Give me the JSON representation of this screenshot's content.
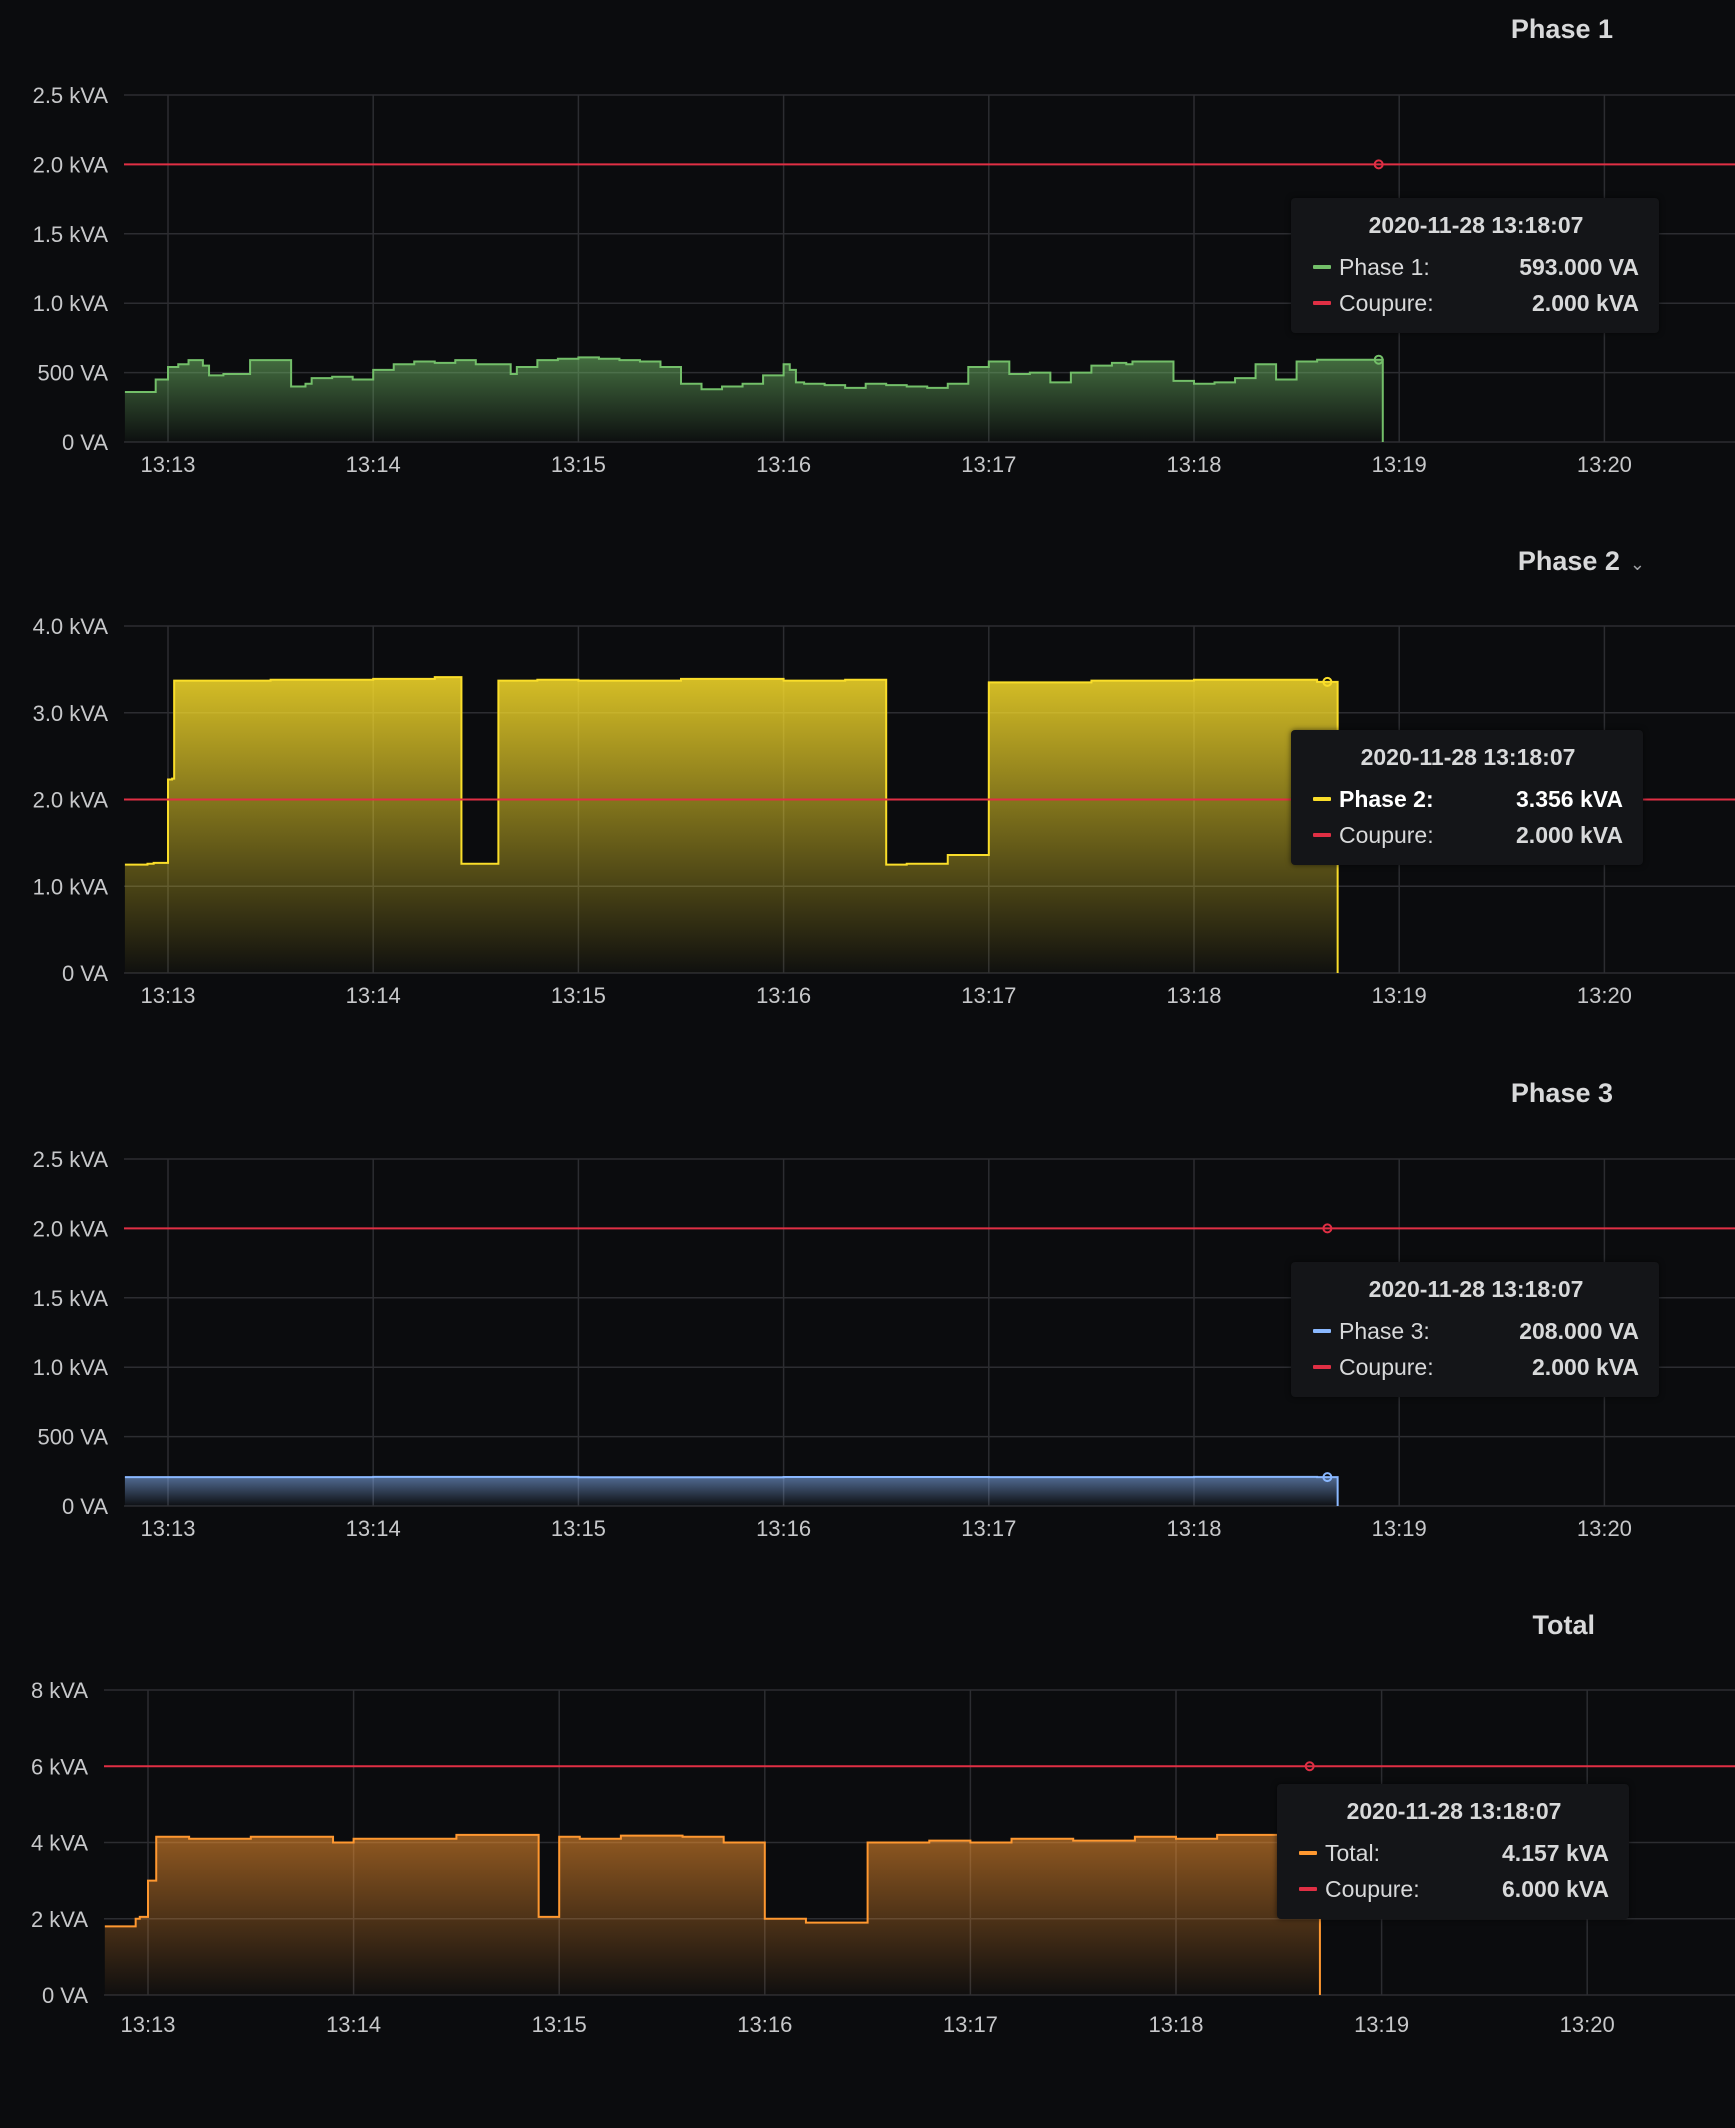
{
  "chart_data": [
    {
      "type": "area",
      "title": "Phase 1",
      "title_chevron": "",
      "x_ticks": [
        "13:13",
        "13:14",
        "13:15",
        "13:16",
        "13:17",
        "13:18",
        "13:19",
        "13:20"
      ],
      "y_ticks": [
        {
          "value": 0,
          "label": "0 VA"
        },
        {
          "value": 500,
          "label": "500 VA"
        },
        {
          "value": 1000,
          "label": "1.0 kVA"
        },
        {
          "value": 1500,
          "label": "1.5 kVA"
        },
        {
          "value": 2000,
          "label": "2.0 kVA"
        },
        {
          "value": 2500,
          "label": "2.5 kVA"
        }
      ],
      "xlim": [
        -0.21,
        7.8
      ],
      "ylim": [
        0,
        2500
      ],
      "grid": true,
      "threshold": {
        "name": "Coupure",
        "value": 2000,
        "color": "#e02f44"
      },
      "series": [
        {
          "name": "Phase 1",
          "color": "#73bf69",
          "step": true,
          "x": [
            -0.21,
            -0.07,
            -0.06,
            0.0,
            0.05,
            0.1,
            0.17,
            0.2,
            0.27,
            0.3,
            0.4,
            0.5,
            0.6,
            0.67,
            0.7,
            0.8,
            0.9,
            1.0,
            1.1,
            1.2,
            1.3,
            1.4,
            1.5,
            1.6,
            1.67,
            1.7,
            1.8,
            1.9,
            2.0,
            2.1,
            2.2,
            2.3,
            2.4,
            2.5,
            2.6,
            2.7,
            2.8,
            2.9,
            3.0,
            3.03,
            3.06,
            3.1,
            3.2,
            3.3,
            3.4,
            3.5,
            3.6,
            3.7,
            3.8,
            3.9,
            4.0,
            4.1,
            4.2,
            4.3,
            4.4,
            4.5,
            4.6,
            4.67,
            4.7,
            4.8,
            4.9,
            5.0,
            5.1,
            5.2,
            5.3,
            5.4,
            5.5,
            5.6,
            5.65,
            5.9,
            5.92
          ],
          "values": [
            360,
            360,
            450,
            540,
            560,
            590,
            550,
            480,
            490,
            490,
            590,
            590,
            400,
            420,
            460,
            470,
            450,
            520,
            560,
            580,
            570,
            590,
            560,
            560,
            490,
            540,
            590,
            600,
            610,
            600,
            590,
            580,
            540,
            420,
            380,
            400,
            420,
            480,
            560,
            520,
            430,
            420,
            410,
            390,
            420,
            410,
            400,
            390,
            420,
            540,
            580,
            490,
            500,
            430,
            500,
            550,
            570,
            560,
            580,
            580,
            440,
            420,
            430,
            460,
            560,
            450,
            580,
            593,
            593,
            593,
            0
          ]
        }
      ],
      "tooltip": {
        "time": "2020-11-28 13:18:07",
        "rows": [
          {
            "label": "Phase 1:",
            "value": "593.000 VA",
            "color": "#73bf69",
            "highlight": false
          },
          {
            "label": "Coupure:",
            "value": "2.000 kVA",
            "color": "#e02f44",
            "highlight": false
          }
        ]
      }
    },
    {
      "type": "area",
      "title": "Phase 2",
      "title_chevron": "⌄",
      "x_ticks": [
        "13:13",
        "13:14",
        "13:15",
        "13:16",
        "13:17",
        "13:18",
        "13:19",
        "13:20"
      ],
      "y_ticks": [
        {
          "value": 0,
          "label": "0 VA"
        },
        {
          "value": 1000,
          "label": "1.0 kVA"
        },
        {
          "value": 2000,
          "label": "2.0 kVA"
        },
        {
          "value": 3000,
          "label": "3.0 kVA"
        },
        {
          "value": 4000,
          "label": "4.0 kVA"
        }
      ],
      "xlim": [
        -0.21,
        7.8
      ],
      "ylim": [
        0,
        4000
      ],
      "grid": true,
      "threshold": {
        "name": "Coupure",
        "value": 2000,
        "color": "#e02f44"
      },
      "series": [
        {
          "name": "Phase 2",
          "color": "#fade2a",
          "step": true,
          "x": [
            -0.21,
            -0.1,
            -0.07,
            0.0,
            0.02,
            0.03,
            0.1,
            0.5,
            1.0,
            1.3,
            1.43,
            1.61,
            1.63,
            1.8,
            2.0,
            2.5,
            3.0,
            3.3,
            3.5,
            3.6,
            3.8,
            4.0,
            4.5,
            5.0,
            5.6,
            5.65,
            5.7
          ],
          "values": [
            1250,
            1260,
            1270,
            2230,
            2240,
            3370,
            3370,
            3380,
            3390,
            3410,
            1260,
            3370,
            3370,
            3380,
            3370,
            3390,
            3370,
            3380,
            1250,
            1260,
            1360,
            3350,
            3370,
            3380,
            3356,
            3356,
            0
          ]
        }
      ],
      "tooltip": {
        "time": "2020-11-28 13:18:07",
        "rows": [
          {
            "label": "Phase 2:",
            "value": "3.356 kVA",
            "color": "#fade2a",
            "highlight": true
          },
          {
            "label": "Coupure:",
            "value": "2.000 kVA",
            "color": "#e02f44",
            "highlight": false
          }
        ]
      }
    },
    {
      "type": "area",
      "title": "Phase 3",
      "title_chevron": "",
      "x_ticks": [
        "13:13",
        "13:14",
        "13:15",
        "13:16",
        "13:17",
        "13:18",
        "13:19",
        "13:20"
      ],
      "y_ticks": [
        {
          "value": 0,
          "label": "0 VA"
        },
        {
          "value": 500,
          "label": "500 VA"
        },
        {
          "value": 1000,
          "label": "1.0 kVA"
        },
        {
          "value": 1500,
          "label": "1.5 kVA"
        },
        {
          "value": 2000,
          "label": "2.0 kVA"
        },
        {
          "value": 2500,
          "label": "2.5 kVA"
        }
      ],
      "xlim": [
        -0.21,
        7.8
      ],
      "ylim": [
        0,
        2500
      ],
      "grid": true,
      "threshold": {
        "name": "Coupure",
        "value": 2000,
        "color": "#e02f44"
      },
      "series": [
        {
          "name": "Phase 3",
          "color": "#8ab8ff",
          "step": true,
          "x": [
            -0.21,
            1.0,
            2.0,
            3.0,
            4.0,
            5.0,
            5.6,
            5.65,
            5.7
          ],
          "values": [
            208,
            210,
            207,
            209,
            208,
            210,
            208,
            208,
            0
          ]
        }
      ],
      "tooltip": {
        "time": "2020-11-28 13:18:07",
        "rows": [
          {
            "label": "Phase 3:",
            "value": "208.000 VA",
            "color": "#8ab8ff",
            "highlight": false
          },
          {
            "label": "Coupure:",
            "value": "2.000 kVA",
            "color": "#e02f44",
            "highlight": false
          }
        ]
      }
    },
    {
      "type": "area",
      "title": "Total",
      "title_chevron": "",
      "x_ticks": [
        "13:13",
        "13:14",
        "13:15",
        "13:16",
        "13:17",
        "13:18",
        "13:19",
        "13:20"
      ],
      "y_ticks": [
        {
          "value": 0,
          "label": "0 VA"
        },
        {
          "value": 2000,
          "label": "2 kVA"
        },
        {
          "value": 4000,
          "label": "4 kVA"
        },
        {
          "value": 6000,
          "label": "6 kVA"
        },
        {
          "value": 8000,
          "label": "8 kVA"
        }
      ],
      "xlim": [
        -0.21,
        7.8
      ],
      "ylim": [
        0,
        8000
      ],
      "grid": true,
      "threshold": {
        "name": "Coupure",
        "value": 6000,
        "color": "#e02f44"
      },
      "series": [
        {
          "name": "Total",
          "color": "#ff9830",
          "step": true,
          "x": [
            -0.21,
            -0.06,
            -0.04,
            0.0,
            0.04,
            0.2,
            0.5,
            0.9,
            1.0,
            1.5,
            1.9,
            2.0,
            2.1,
            2.3,
            2.6,
            2.8,
            3.0,
            3.2,
            3.5,
            3.8,
            4.0,
            4.2,
            4.5,
            4.8,
            5.0,
            5.2,
            5.5,
            5.6,
            5.65,
            5.7
          ],
          "values": [
            1800,
            2000,
            2050,
            3000,
            4150,
            4100,
            4150,
            4000,
            4100,
            4200,
            2050,
            4150,
            4100,
            4180,
            4150,
            4000,
            2000,
            1900,
            4000,
            4050,
            4000,
            4100,
            4050,
            4150,
            4100,
            4200,
            4000,
            4157,
            4157,
            0
          ]
        }
      ],
      "tooltip": {
        "time": "2020-11-28 13:18:07",
        "rows": [
          {
            "label": "Total:",
            "value": "4.157 kVA",
            "color": "#ff9830",
            "highlight": false
          },
          {
            "label": "Coupure:",
            "value": "6.000 kVA",
            "color": "#e02f44",
            "highlight": false
          }
        ]
      }
    }
  ]
}
